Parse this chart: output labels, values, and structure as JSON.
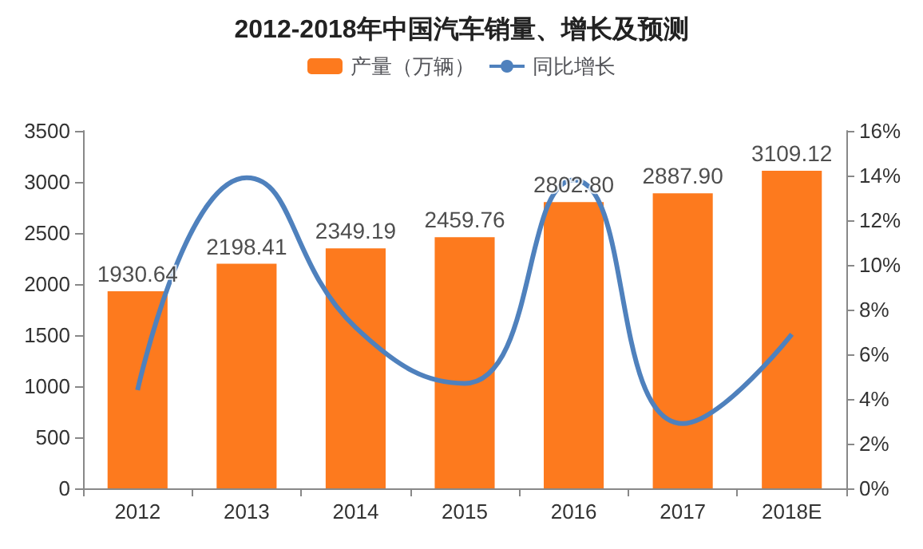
{
  "chart_data": {
    "type": "bar",
    "title": "2012-2018年中国汽车销量、增长及预测",
    "categories": [
      "2012",
      "2013",
      "2014",
      "2015",
      "2016",
      "2017",
      "2018E"
    ],
    "series": [
      {
        "name": "产量（万辆）",
        "color": "#fd7a1e",
        "values": [
          1930.64,
          2198.41,
          2349.19,
          2459.76,
          2802.8,
          2887.9,
          3109.12
        ],
        "value_labels": [
          "1930.64",
          "2198.41",
          "2349.19",
          "2459.76",
          "2802.80",
          "2887.90",
          "3109.12"
        ]
      },
      {
        "name": "同比增长",
        "type": "line",
        "axis": "y2",
        "color": "#4f81bd",
        "values": [
          4.4,
          13.9,
          7.2,
          4.7,
          13.8,
          2.9,
          6.9
        ]
      }
    ],
    "ylim": [
      0,
      3500
    ],
    "yticks": [
      0,
      500,
      1000,
      1500,
      2000,
      2500,
      3000,
      3500
    ],
    "y2lim": [
      0,
      16
    ],
    "y2ticks": [
      {
        "value": 0,
        "label": "0%"
      },
      {
        "value": 2,
        "label": "2%"
      },
      {
        "value": 4,
        "label": "4%"
      },
      {
        "value": 6,
        "label": "6%"
      },
      {
        "value": 8,
        "label": "8%"
      },
      {
        "value": 10,
        "label": "10%"
      },
      {
        "value": 12,
        "label": "12%"
      },
      {
        "value": 14,
        "label": "14%"
      },
      {
        "value": 16,
        "label": "16%"
      }
    ],
    "grid": false,
    "legend": "top",
    "marker": "none",
    "line_style": "solid"
  }
}
